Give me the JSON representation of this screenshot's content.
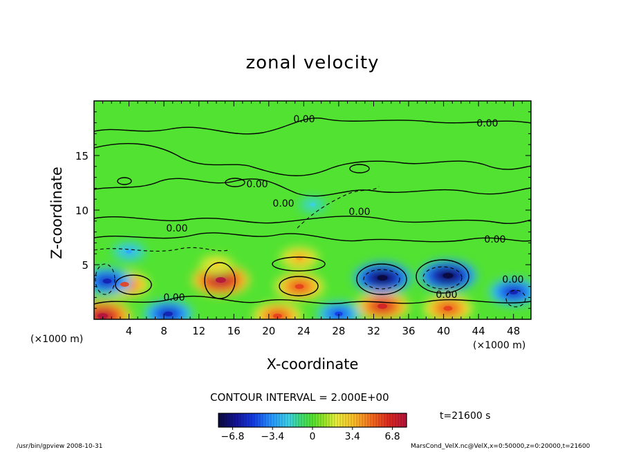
{
  "chart_data": {
    "type": "heatmap",
    "title": "zonal velocity",
    "xlabel": "X-coordinate",
    "ylabel": "Z-coordinate",
    "x_unit": "(×1000 m)",
    "y_unit": "(×1000 m)",
    "xlim": [
      0,
      50
    ],
    "ylim": [
      0,
      20
    ],
    "x_ticks": [
      4,
      8,
      12,
      16,
      20,
      24,
      28,
      32,
      36,
      40,
      44,
      48
    ],
    "y_ticks": [
      5,
      10,
      15
    ],
    "contour_interval_text": "CONTOUR INTERVAL = 2.000E+00",
    "contour_labels": [
      "0.00",
      "0.00",
      "0.00",
      "0.00",
      "0.00",
      "0.00",
      "0.00",
      "0.00",
      "0.00",
      "0.00"
    ],
    "colorbar": {
      "min": -8,
      "max": 8,
      "tick_labels": [
        "−6.8",
        "−3.4",
        "0",
        "3.4",
        "6.8"
      ],
      "tick_values": [
        -6.8,
        -3.4,
        0,
        3.4,
        6.8
      ]
    },
    "features": [
      {
        "x": 3.5,
        "z": 3.2,
        "value": 6
      },
      {
        "x": 14.5,
        "z": 3.6,
        "value": 8
      },
      {
        "x": 14.0,
        "z": 5.0,
        "value": 3
      },
      {
        "x": 23.5,
        "z": 3.0,
        "value": 6
      },
      {
        "x": 23.5,
        "z": 5.6,
        "value": 4
      },
      {
        "x": 33.0,
        "z": 1.2,
        "value": 7
      },
      {
        "x": 40.5,
        "z": 1.0,
        "value": 6
      },
      {
        "x": 1.0,
        "z": 0.3,
        "value": 8
      },
      {
        "x": 21.0,
        "z": 0.3,
        "value": 6
      },
      {
        "x": 33.0,
        "z": 3.8,
        "value": -8
      },
      {
        "x": 40.5,
        "z": 4.0,
        "value": -8
      },
      {
        "x": 1.5,
        "z": 3.5,
        "value": -6
      },
      {
        "x": 8.5,
        "z": 0.5,
        "value": -6
      },
      {
        "x": 28.0,
        "z": 0.5,
        "value": -5
      },
      {
        "x": 48.0,
        "z": 2.5,
        "value": -6
      },
      {
        "x": 4.0,
        "z": 6.2,
        "value": -3
      },
      {
        "x": 25.0,
        "z": 10.5,
        "value": -2
      }
    ]
  },
  "time_label": "t=21600 s",
  "footer": {
    "left": "/usr/bin/gpview   2008-10-31",
    "right": "MarsCond_VelX.nc@VelX,x=0:50000,z=0:20000,t=21600"
  }
}
